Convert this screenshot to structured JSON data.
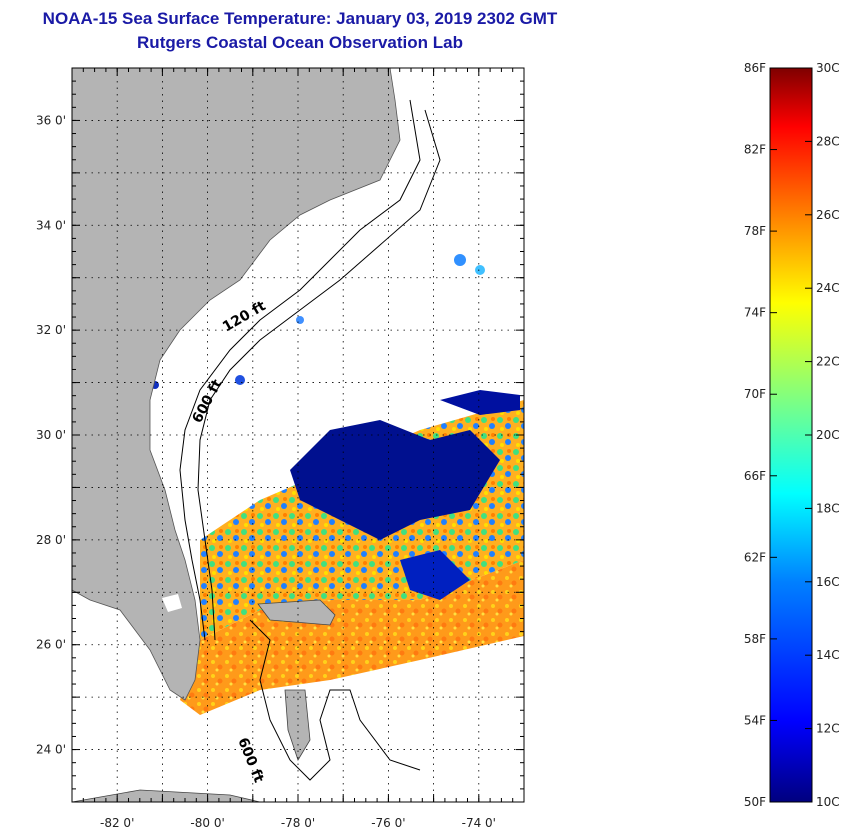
{
  "title": {
    "line1": "NOAA-15 Sea Surface Temperature:  January 03, 2019 2302 GMT",
    "line2": "Rutgers Coastal Ocean Observation Lab"
  },
  "map": {
    "lon_range": [
      -83,
      -73
    ],
    "lat_range": [
      23,
      37
    ],
    "lon_ticks": [
      {
        "value": -82,
        "label": "-82 0'"
      },
      {
        "value": -80,
        "label": "-80 0'"
      },
      {
        "value": -78,
        "label": "-78 0'"
      },
      {
        "value": -76,
        "label": "-76 0'"
      },
      {
        "value": -74,
        "label": "-74 0'"
      }
    ],
    "lat_ticks": [
      {
        "value": 36,
        "label": "36 0'"
      },
      {
        "value": 34,
        "label": "34 0'"
      },
      {
        "value": 32,
        "label": "32 0'"
      },
      {
        "value": 30,
        "label": "30 0'"
      },
      {
        "value": 28,
        "label": "28 0'"
      },
      {
        "value": 26,
        "label": "26 0'"
      },
      {
        "value": 24,
        "label": "24 0'"
      }
    ],
    "contour_labels": [
      "120 ft",
      "600 ft",
      "600 ft"
    ],
    "land_color": "#b4b4b4",
    "grid_style": "dotted"
  },
  "colorbar": {
    "range_f": [
      50,
      86
    ],
    "range_c": [
      10,
      30
    ],
    "f_labels": [
      "86F",
      "82F",
      "78F",
      "74F",
      "70F",
      "66F",
      "62F",
      "58F",
      "54F",
      "50F"
    ],
    "c_labels": [
      "30C",
      "28C",
      "26C",
      "24C",
      "22C",
      "20C",
      "18C",
      "16C",
      "14C",
      "12C",
      "10C"
    ],
    "colors": [
      "#00007f",
      "#0000ff",
      "#0080ff",
      "#00ffff",
      "#80ff80",
      "#ffff00",
      "#ff8000",
      "#ff0000",
      "#7f0000"
    ]
  }
}
